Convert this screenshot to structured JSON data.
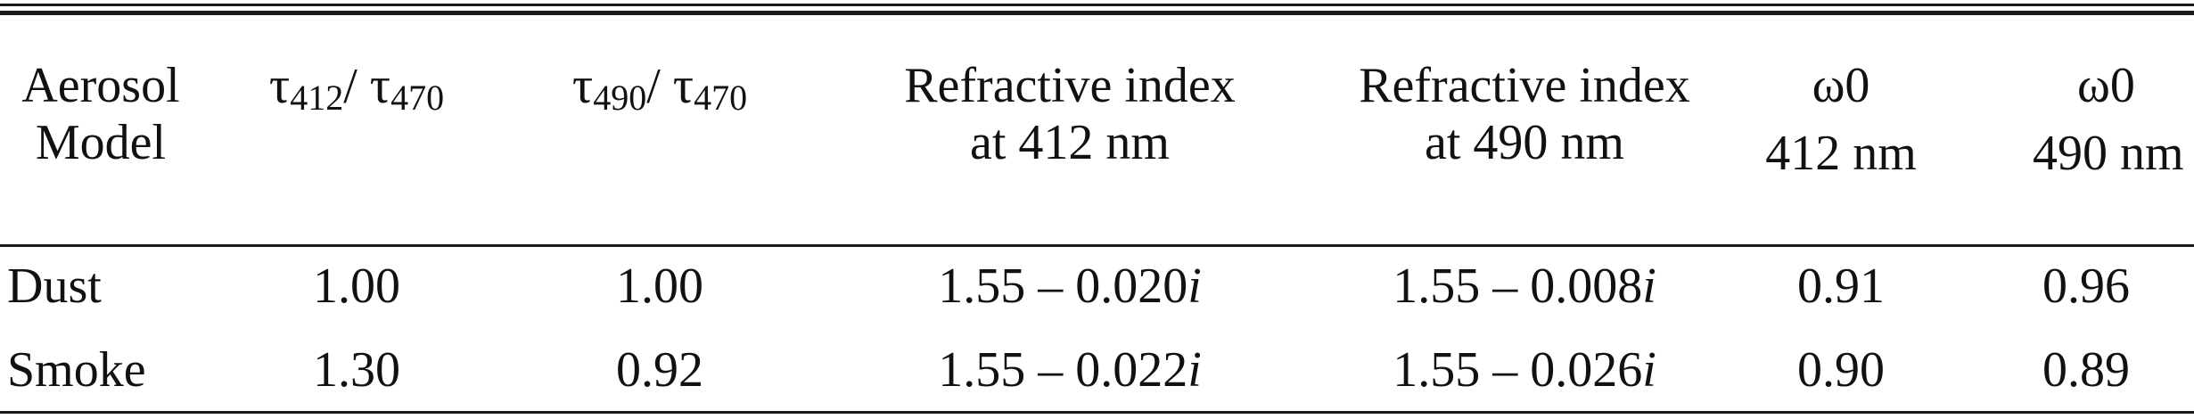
{
  "table": {
    "headers": {
      "model": [
        "Aerosol",
        "Model"
      ],
      "tau412": {
        "sym": "τ",
        "sub": "412",
        "sep": "/ ",
        "sym2": "τ",
        "sub2": "470"
      },
      "tau490": {
        "sym": "τ",
        "sub": "490",
        "sep": "/ ",
        "sym2": "τ",
        "sub2": "470"
      },
      "ri412": [
        "Refractive index",
        "at 412 nm"
      ],
      "ri490": [
        "Refractive index",
        "at 490 nm"
      ],
      "w412": [
        "ω0",
        "412 nm"
      ],
      "w490": [
        "ω0",
        "490 nm"
      ]
    },
    "rows": [
      {
        "model": "Dust",
        "tau412": "1.00",
        "tau490": "1.00",
        "ri412_real": "1.55 – 0.020",
        "ri412_imag": "i",
        "ri490_real": "1.55 – 0.008",
        "ri490_imag": "i",
        "w412": "0.91",
        "w490": "0.96"
      },
      {
        "model": "Smoke",
        "tau412": "1.30",
        "tau490": "0.92",
        "ri412_real": "1.55 – 0.022",
        "ri412_imag": "i",
        "ri490_real": "1.55 – 0.026",
        "ri490_imag": "i",
        "w412": "0.90",
        "w490": "0.89"
      }
    ]
  }
}
